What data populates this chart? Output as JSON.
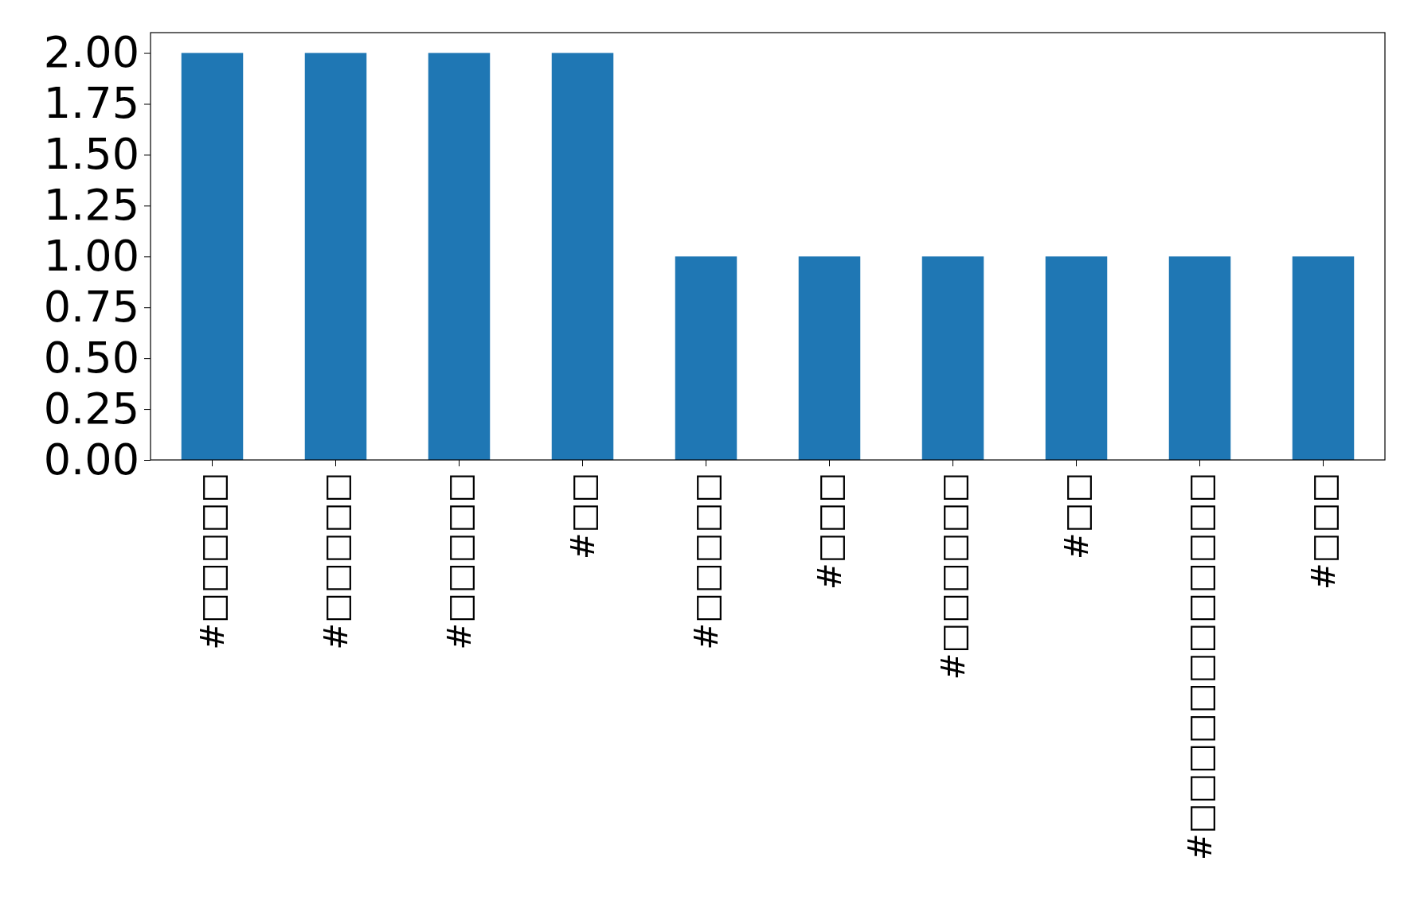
{
  "chart_data": {
    "type": "bar",
    "categories": [
      "#□□□□□",
      "#□□□□□",
      "#□□□□□",
      "#□□",
      "#□□□□□",
      "#□□□",
      "#□□□□□□",
      "#□□",
      "#□□□□□□□□□□□□",
      "#□□□"
    ],
    "values": [
      2,
      2,
      2,
      2,
      1,
      1,
      1,
      1,
      1,
      1
    ],
    "color": "#1f77b4",
    "ylim": [
      0,
      2.1
    ],
    "yticks": [
      {
        "value": 0,
        "label": "0.00"
      },
      {
        "value": 0.25,
        "label": "0.25"
      },
      {
        "value": 0.5,
        "label": "0.50"
      },
      {
        "value": 0.75,
        "label": "0.75"
      },
      {
        "value": 1,
        "label": "1.00"
      },
      {
        "value": 1.25,
        "label": "1.25"
      },
      {
        "value": 1.5,
        "label": "1.50"
      },
      {
        "value": 1.75,
        "label": "1.75"
      },
      {
        "value": 2,
        "label": "2.00"
      }
    ],
    "grid": false
  }
}
